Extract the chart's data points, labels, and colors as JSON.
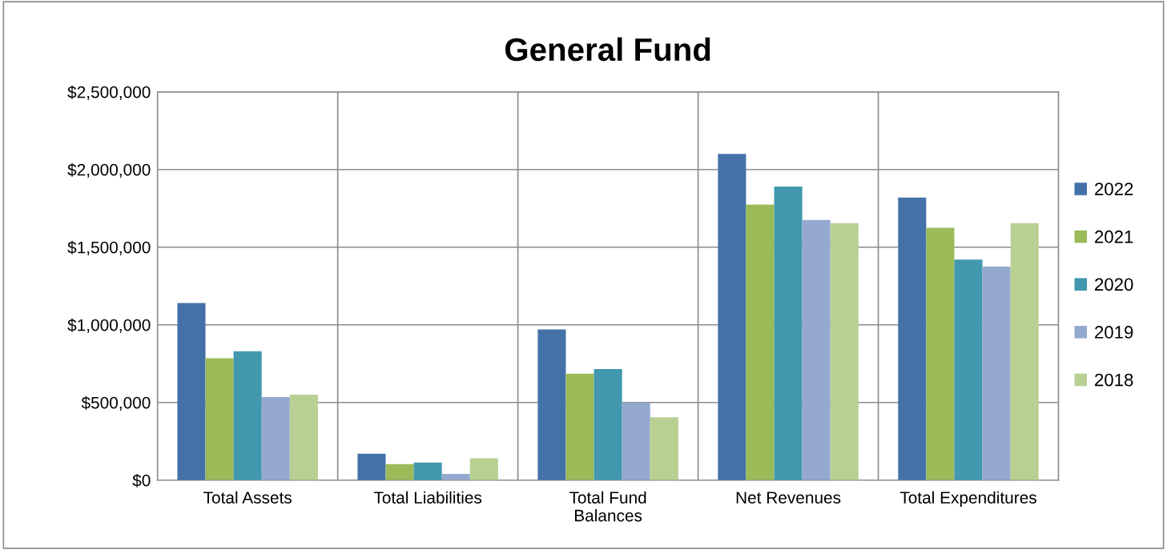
{
  "chart_data": {
    "type": "bar",
    "title": "General Fund",
    "categories": [
      "Total Assets",
      "Total Liabilities",
      "Total Fund\nBalances",
      "Net Revenues",
      "Total Expenditures"
    ],
    "series": [
      {
        "name": "2022",
        "color": "#4472a8",
        "values": [
          1140000,
          170000,
          970000,
          2100000,
          1820000
        ]
      },
      {
        "name": "2021",
        "color": "#9bbb59",
        "values": [
          785000,
          103000,
          685000,
          1775000,
          1625000
        ]
      },
      {
        "name": "2020",
        "color": "#4198af",
        "values": [
          830000,
          113000,
          715000,
          1890000,
          1420000
        ]
      },
      {
        "name": "2019",
        "color": "#95a9d0",
        "values": [
          535000,
          40000,
          500000,
          1675000,
          1375000
        ]
      },
      {
        "name": "2018",
        "color": "#b8d092",
        "values": [
          550000,
          140000,
          405000,
          1655000,
          1655000
        ]
      }
    ],
    "ylim": [
      0,
      2500000
    ],
    "yticks": [
      {
        "value": 0,
        "label": "$0"
      },
      {
        "value": 500000,
        "label": "$500,000"
      },
      {
        "value": 1000000,
        "label": "$1,000,000"
      },
      {
        "value": 1500000,
        "label": "$1,500,000"
      },
      {
        "value": 2000000,
        "label": "$2,000,000"
      },
      {
        "value": 2500000,
        "label": "$2,500,000"
      }
    ],
    "grid": true,
    "legend": "right"
  }
}
